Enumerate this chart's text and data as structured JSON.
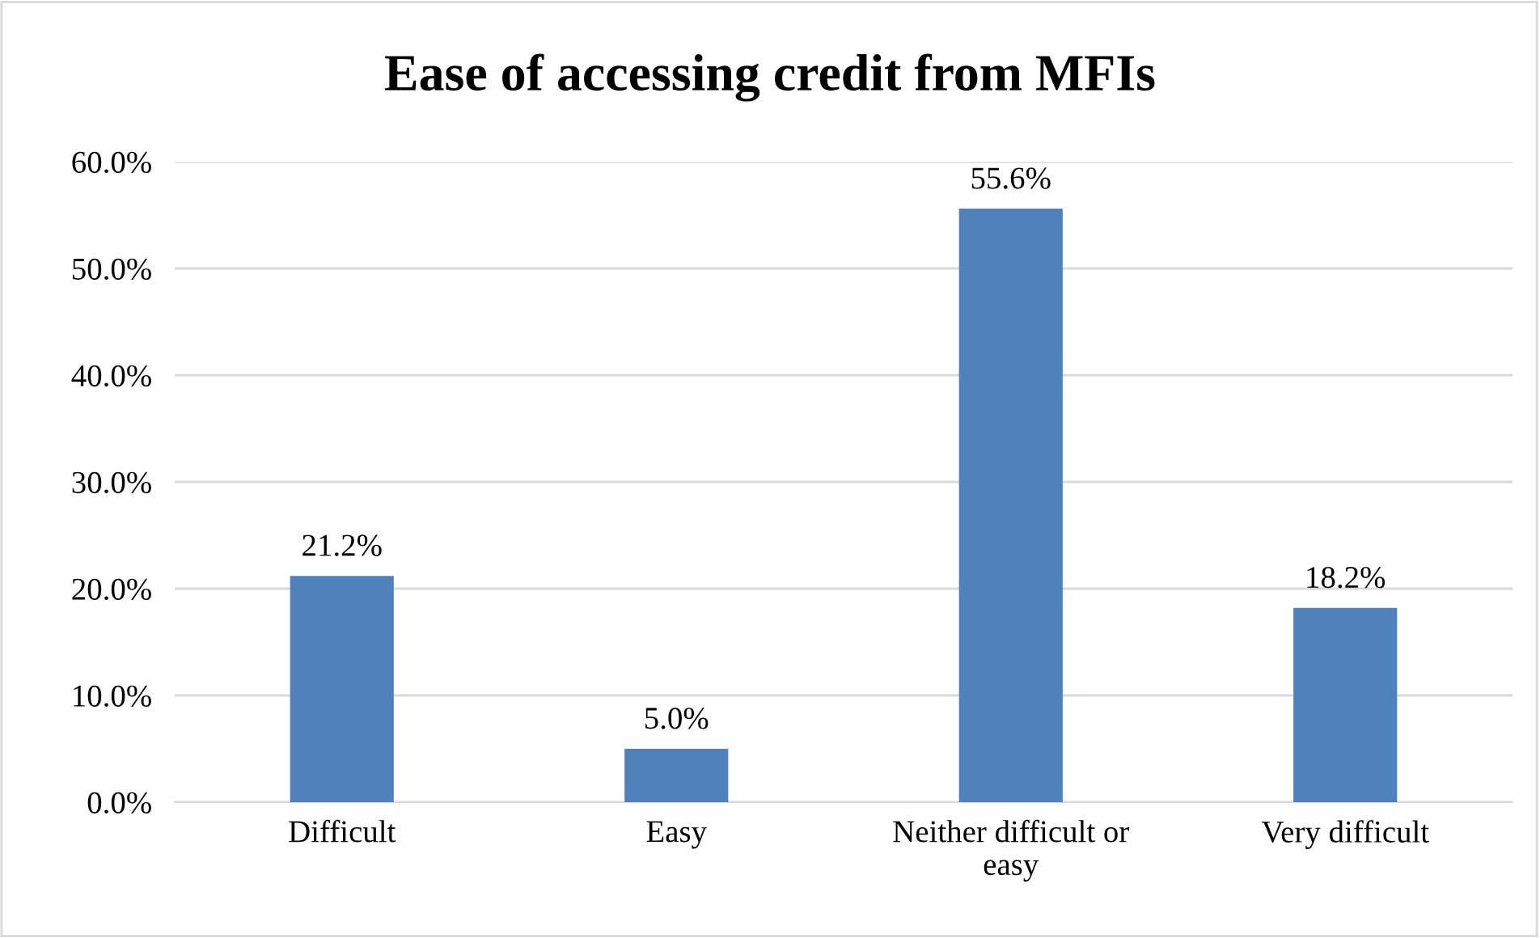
{
  "chart_data": {
    "type": "bar",
    "title": "Ease of accessing credit from MFIs",
    "categories": [
      "Difficult",
      "Easy",
      "Neither difficult or easy",
      "Very difficult"
    ],
    "values": [
      21.2,
      5.0,
      55.6,
      18.2
    ],
    "color": "#4f81bd",
    "value_labels": [
      "21.2%",
      "5.0%",
      "55.6%",
      "18.2%"
    ],
    "ylim": [
      0,
      60
    ],
    "yticks": [
      {
        "value": 0,
        "label": "0.0%"
      },
      {
        "value": 10,
        "label": "10.0%"
      },
      {
        "value": 20,
        "label": "20.0%"
      },
      {
        "value": 30,
        "label": "30.0%"
      },
      {
        "value": 40,
        "label": "40.0%"
      },
      {
        "value": 50,
        "label": "50.0%"
      },
      {
        "value": 60,
        "label": "60.0%"
      }
    ],
    "grid": "y",
    "legend": false
  }
}
